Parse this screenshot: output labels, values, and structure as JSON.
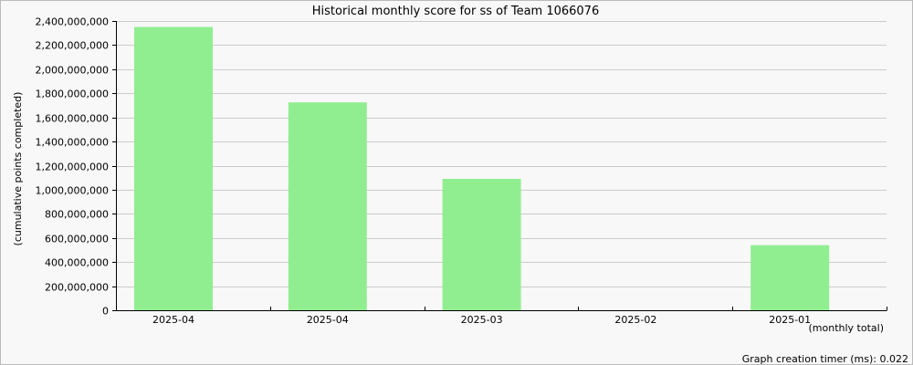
{
  "chart_data": {
    "type": "bar",
    "title": "Historical monthly score for ss of Team 1066076",
    "ylabel": "(cumulative points completed)",
    "xlabel": "(monthly total)",
    "categories": [
      "2025-04",
      "2025-04",
      "2025-03",
      "2025-02",
      "2025-01"
    ],
    "values": [
      2350000000,
      1725000000,
      1090000000,
      0,
      540000000
    ],
    "ylim": [
      0,
      2400000000
    ],
    "yticks": [
      0,
      200000000,
      400000000,
      600000000,
      800000000,
      1000000000,
      1200000000,
      1400000000,
      1600000000,
      1800000000,
      2000000000,
      2200000000,
      2400000000
    ],
    "ytick_labels": [
      "0",
      "200,000,000",
      "400,000,000",
      "600,000,000",
      "800,000,000",
      "1,000,000,000",
      "1,200,000,000",
      "1,400,000,000",
      "1,600,000,000",
      "1,800,000,000",
      "2,000,000,000",
      "2,200,000,000",
      "2,400,000,000"
    ],
    "grid": true,
    "bar_color": "#90ee90",
    "grid_color": "#cccccc"
  },
  "footer": {
    "timer": "Graph creation timer (ms): 0.022"
  }
}
